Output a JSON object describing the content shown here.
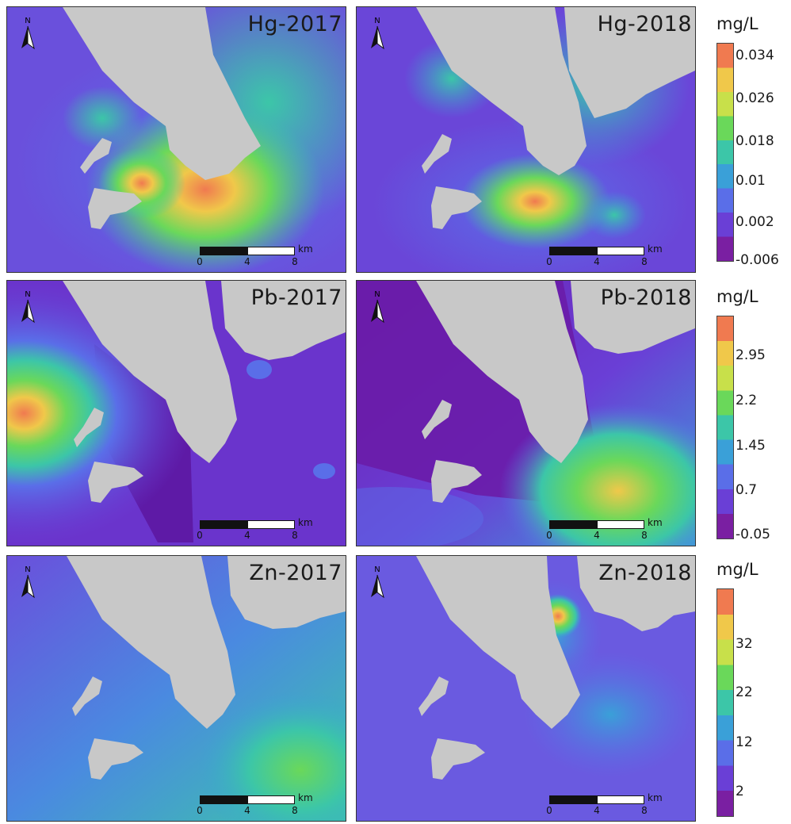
{
  "panels": {
    "hg2017": {
      "title": "Hg-2017",
      "base": "#5a5ee6"
    },
    "hg2018": {
      "title": "Hg-2018",
      "base": "#6c46d8"
    },
    "pb2017": {
      "title": "Pb-2017",
      "base": "#7a30c4"
    },
    "pb2018": {
      "title": "Pb-2018",
      "base": "#7420b0"
    },
    "zn2017": {
      "title": "Zn-2017",
      "base": "#5a7ee8"
    },
    "zn2018": {
      "title": "Zn-2018",
      "base": "#6a58e2"
    }
  },
  "scale_bar": {
    "ticks": [
      "0",
      "4",
      "8"
    ],
    "unit": "km"
  },
  "north_arrow": {
    "label": "N",
    "icon": "north-arrow-icon"
  },
  "legends": {
    "hg": {
      "unit": "mg/L",
      "labels": [
        "0.034",
        "0.026",
        "0.018",
        "0.01",
        "0.002",
        "-0.006"
      ]
    },
    "pb": {
      "unit": "mg/L",
      "labels": [
        "2.95",
        "2.2",
        "1.45",
        "0.7",
        "-0.05"
      ]
    },
    "zn": {
      "unit": "mg/L",
      "labels": [
        "32",
        "22",
        "12",
        "2"
      ]
    }
  },
  "colors": {
    "land": "#c8c8c8",
    "ramp": [
      "#7a1fa2",
      "#6a3fd6",
      "#5a6ee8",
      "#3aa0d8",
      "#3cc6a8",
      "#6ad85a",
      "#c8e04a",
      "#f0c84a",
      "#f07a50"
    ]
  }
}
